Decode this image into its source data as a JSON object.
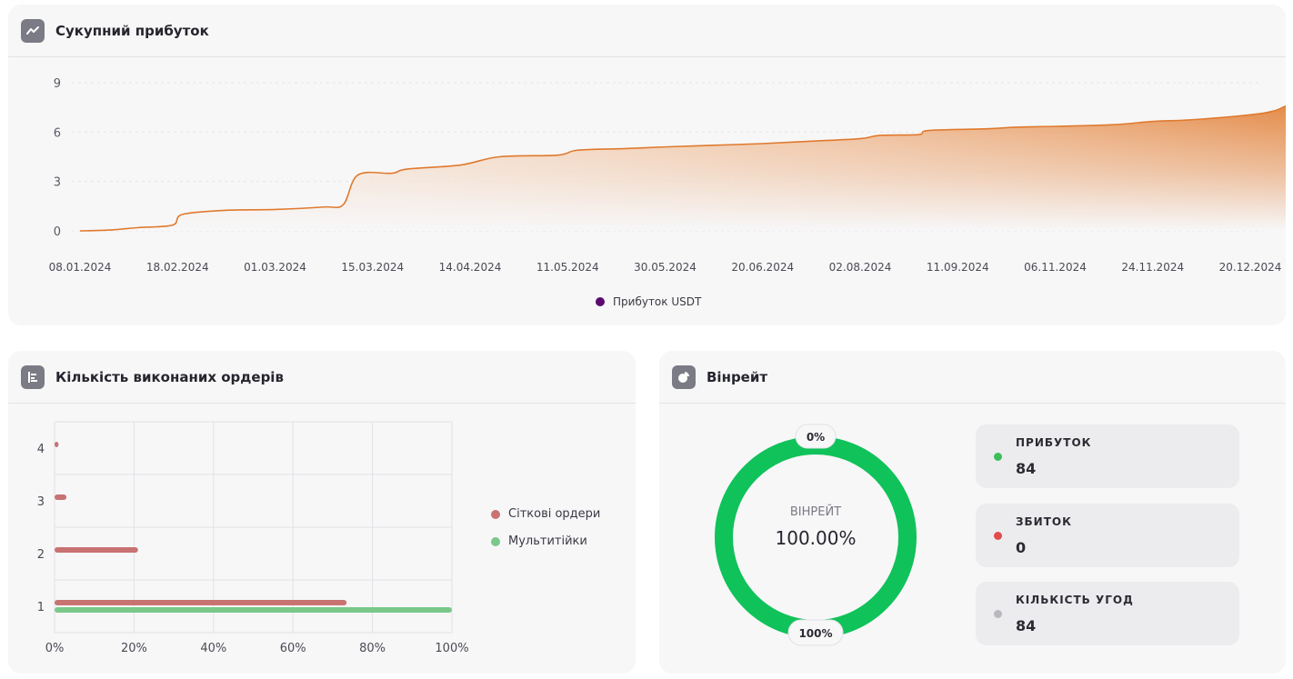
{
  "profit_card": {
    "title": "Сукупний прибуток",
    "icon": "trend-line-icon"
  },
  "orders_card": {
    "title": "Кількість виконаних ордерів",
    "icon": "bar-list-icon"
  },
  "winrate_card": {
    "title": "Вінрейт",
    "icon": "pie-chart-icon",
    "center_label": "ВІНРЕЙТ",
    "center_value": "100.00%",
    "top_badge": "0%",
    "bottom_badge": "100%",
    "ring_color": "#10c25a",
    "stats": [
      {
        "label": "ПРИБУТОК",
        "value": "84",
        "color": "#3bbf5a"
      },
      {
        "label": "ЗБИТОК",
        "value": "0",
        "color": "#e24b4b"
      },
      {
        "label": "КІЛЬКІСТЬ УГОД",
        "value": "84",
        "color": "#b8b8bd"
      }
    ]
  },
  "chart_data": [
    {
      "type": "area",
      "x_tick_labels": [
        "08.01.2024",
        "18.02.2024",
        "01.03.2024",
        "15.03.2024",
        "14.04.2024",
        "11.05.2024",
        "30.05.2024",
        "20.06.2024",
        "02.08.2024",
        "11.09.2024",
        "06.11.2024",
        "24.11.2024",
        "20.12.2024"
      ],
      "y_ticks": [
        0,
        3,
        6,
        9
      ],
      "ylim": [
        0,
        9
      ],
      "series": [
        {
          "name": "Прибуток USDT",
          "legend_color": "#5a0a6e",
          "line_color": "#e07a2e",
          "points": [
            [
              0,
              0.0
            ],
            [
              0.3,
              0.05
            ],
            [
              0.6,
              0.2
            ],
            [
              0.95,
              0.35
            ],
            [
              1.05,
              1.0
            ],
            [
              1.5,
              1.25
            ],
            [
              2.0,
              1.3
            ],
            [
              2.5,
              1.45
            ],
            [
              2.7,
              1.6
            ],
            [
              2.85,
              3.4
            ],
            [
              3.2,
              3.5
            ],
            [
              3.35,
              3.75
            ],
            [
              3.9,
              4.0
            ],
            [
              4.3,
              4.5
            ],
            [
              4.9,
              4.6
            ],
            [
              5.1,
              4.9
            ],
            [
              5.6,
              5.0
            ],
            [
              6.0,
              5.1
            ],
            [
              6.5,
              5.2
            ],
            [
              7.0,
              5.3
            ],
            [
              7.5,
              5.45
            ],
            [
              8.0,
              5.6
            ],
            [
              8.2,
              5.8
            ],
            [
              8.6,
              5.85
            ],
            [
              8.7,
              6.1
            ],
            [
              9.3,
              6.2
            ],
            [
              9.6,
              6.3
            ],
            [
              10.0,
              6.35
            ],
            [
              10.6,
              6.45
            ],
            [
              11.0,
              6.65
            ],
            [
              11.4,
              6.75
            ],
            [
              12.0,
              7.05
            ],
            [
              12.25,
              7.3
            ],
            [
              12.45,
              7.75
            ],
            [
              12.8,
              7.85
            ],
            [
              12.95,
              7.95
            ]
          ]
        }
      ]
    },
    {
      "type": "bar",
      "orientation": "horizontal",
      "categories": [
        "1",
        "2",
        "3",
        "4"
      ],
      "x_tick_labels": [
        "0%",
        "20%",
        "40%",
        "60%",
        "80%",
        "100%"
      ],
      "xlim": [
        0,
        100
      ],
      "grid": true,
      "series": [
        {
          "name": "Сіткові ордери",
          "color": "#c87272",
          "values": [
            73.5,
            21,
            3,
            1
          ]
        },
        {
          "name": "Мультитійки",
          "color": "#7ac88a",
          "values": [
            100,
            0,
            0,
            0
          ]
        }
      ]
    },
    {
      "type": "pie",
      "subtype": "donut",
      "slices": [
        {
          "label": "ПРИБУТОК",
          "value": 84
        },
        {
          "label": "ЗБИТОК",
          "value": 0
        }
      ]
    }
  ]
}
